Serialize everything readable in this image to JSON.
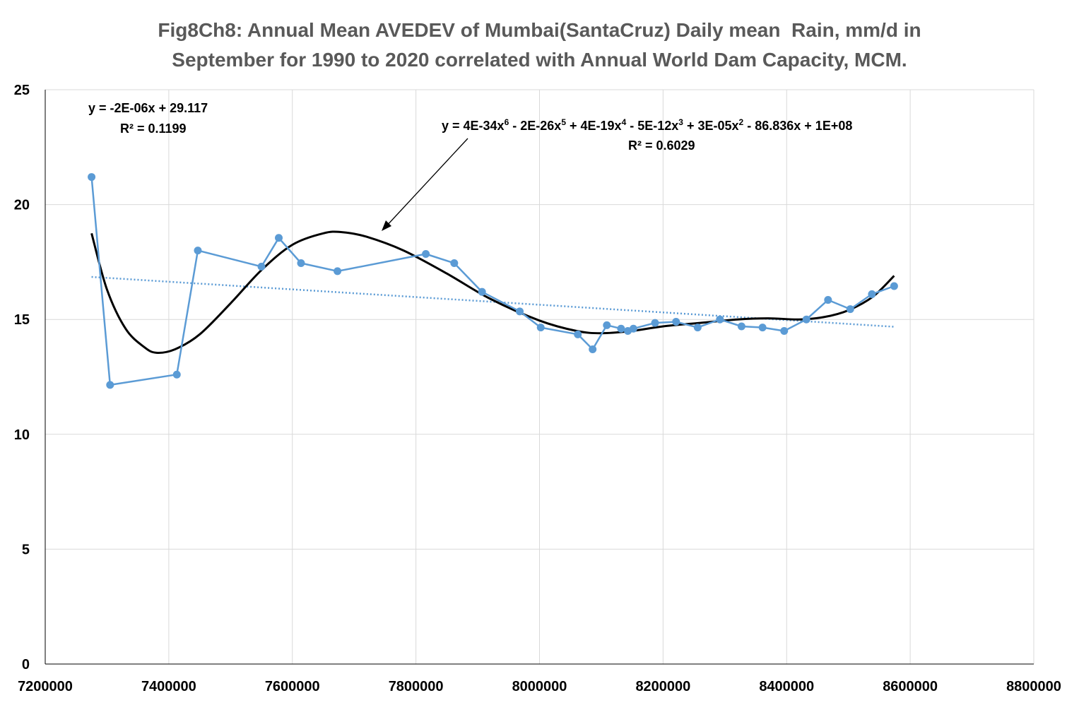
{
  "chart_data": {
    "type": "scatter",
    "title_lines": [
      "Fig8Ch8: Annual Mean AVEDEV of Mumbai(SantaCruz) Daily mean  Rain, mm/d in",
      "September for 1990 to 2020 correlated with Annual World Dam Capacity, MCM."
    ],
    "xlabel": "",
    "ylabel": "",
    "xlim": [
      7200000,
      8800000
    ],
    "ylim": [
      0,
      25
    ],
    "x_ticks": [
      7200000,
      7400000,
      7600000,
      7800000,
      8000000,
      8200000,
      8400000,
      8600000,
      8800000
    ],
    "y_ticks": [
      0,
      5,
      10,
      15,
      20,
      25
    ],
    "x_tick_labels": [
      "7200000",
      "7400000",
      "7600000",
      "7800000",
      "8000000",
      "8200000",
      "8400000",
      "8600000",
      "8800000"
    ],
    "y_tick_labels": [
      "0",
      "5",
      "10",
      "15",
      "20",
      "25"
    ],
    "grid": true,
    "series": [
      {
        "color": "#5b9bd5",
        "markers": true,
        "lines": true,
        "x": [
          7275000,
          7305000,
          7413000,
          7447000,
          7550000,
          7578000,
          7614000,
          7673000,
          7816000,
          7862000,
          7907000,
          7968000,
          8002000,
          8062000,
          8086000,
          8109000,
          8132000,
          8143000,
          8152000,
          8187000,
          8221000,
          8256000,
          8292000,
          8327000,
          8361000,
          8396000,
          8432000,
          8467000,
          8503000,
          8538000,
          8574000
        ],
        "y": [
          21.2,
          12.15,
          12.6,
          18.0,
          17.3,
          18.55,
          17.45,
          17.1,
          17.85,
          17.45,
          16.2,
          15.35,
          14.65,
          14.35,
          13.7,
          14.75,
          14.6,
          14.5,
          14.6,
          14.85,
          14.9,
          14.65,
          15.0,
          14.7,
          14.65,
          14.5,
          15.0,
          15.85,
          15.45,
          16.1,
          16.45
        ]
      }
    ],
    "trendlines": [
      {
        "type": "linear",
        "color": "#5b9bd5",
        "style": "dotted",
        "equation": "y = -2E-06x + 29.117",
        "r2": "R² = 0.1199",
        "x_range": [
          7275000,
          8574000
        ],
        "slope": -1.67e-06,
        "intercept": 29.0
      },
      {
        "type": "poly6",
        "color": "#000000",
        "style": "solid",
        "equation_parts": [
          "y = 4E-34x",
          "6",
          " - 2E-26x",
          "5",
          " + 4E-19x",
          "4",
          " - 5E-12x",
          "3",
          " + 3E-05x",
          "2",
          " - 86.836x + 1E+08"
        ],
        "r2": "R² = 0.6029",
        "x": [
          7275000,
          7300000,
          7330000,
          7360000,
          7380000,
          7410000,
          7450000,
          7500000,
          7550000,
          7600000,
          7650000,
          7680000,
          7720000,
          7780000,
          7850000,
          7920000,
          8000000,
          8060000,
          8100000,
          8150000,
          8200000,
          8260000,
          8320000,
          8370000,
          8420000,
          8460000,
          8500000,
          8540000,
          8574000
        ],
        "y": [
          18.75,
          16.3,
          14.6,
          13.8,
          13.55,
          13.7,
          14.35,
          15.7,
          17.15,
          18.25,
          18.75,
          18.8,
          18.6,
          18.0,
          17.0,
          15.9,
          14.95,
          14.5,
          14.4,
          14.5,
          14.7,
          14.85,
          15.0,
          15.05,
          15.0,
          15.1,
          15.4,
          16.0,
          16.9
        ]
      }
    ]
  }
}
